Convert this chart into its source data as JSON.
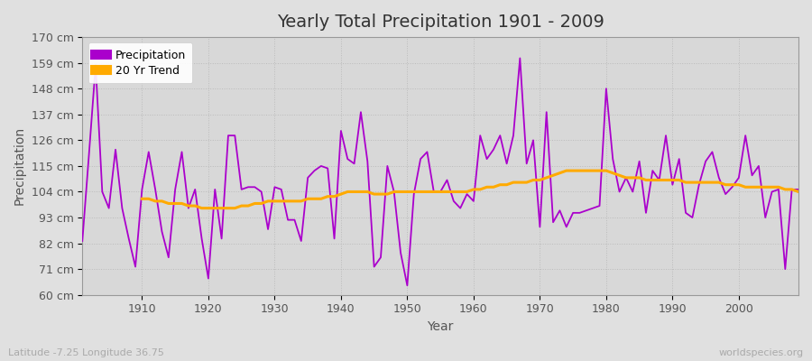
{
  "title": "Yearly Total Precipitation 1901 - 2009",
  "xlabel": "Year",
  "ylabel": "Precipitation",
  "lat_lon_label": "Latitude -7.25 Longitude 36.75",
  "watermark": "worldspecies.org",
  "bg_color": "#e0e0e0",
  "plot_bg_color": "#d8d8d8",
  "precip_color": "#aa00cc",
  "trend_color": "#ffaa00",
  "years": [
    1901,
    1902,
    1903,
    1904,
    1905,
    1906,
    1907,
    1908,
    1909,
    1910,
    1911,
    1912,
    1913,
    1914,
    1915,
    1916,
    1917,
    1918,
    1919,
    1920,
    1921,
    1922,
    1923,
    1924,
    1925,
    1926,
    1927,
    1928,
    1929,
    1930,
    1931,
    1932,
    1933,
    1934,
    1935,
    1936,
    1937,
    1938,
    1939,
    1940,
    1941,
    1942,
    1943,
    1944,
    1945,
    1946,
    1947,
    1948,
    1949,
    1950,
    1951,
    1952,
    1953,
    1954,
    1955,
    1956,
    1957,
    1958,
    1959,
    1960,
    1961,
    1962,
    1963,
    1964,
    1965,
    1966,
    1967,
    1968,
    1969,
    1970,
    1971,
    1972,
    1973,
    1974,
    1975,
    1976,
    1977,
    1978,
    1979,
    1980,
    1981,
    1982,
    1983,
    1984,
    1985,
    1986,
    1987,
    1988,
    1989,
    1990,
    1991,
    1992,
    1993,
    1994,
    1995,
    1996,
    1997,
    1998,
    1999,
    2000,
    2001,
    2002,
    2003,
    2004,
    2005,
    2006,
    2007,
    2008,
    2009
  ],
  "precip": [
    83,
    120,
    158,
    104,
    97,
    122,
    97,
    84,
    72,
    105,
    121,
    105,
    87,
    76,
    105,
    121,
    97,
    105,
    84,
    67,
    105,
    84,
    128,
    128,
    105,
    106,
    106,
    104,
    88,
    106,
    105,
    92,
    92,
    83,
    110,
    113,
    115,
    114,
    84,
    130,
    118,
    116,
    138,
    117,
    72,
    76,
    115,
    104,
    78,
    64,
    103,
    118,
    121,
    104,
    104,
    109,
    100,
    97,
    103,
    100,
    128,
    118,
    122,
    128,
    116,
    128,
    161,
    116,
    126,
    89,
    138,
    91,
    96,
    89,
    95,
    95,
    96,
    97,
    98,
    148,
    118,
    104,
    110,
    104,
    117,
    95,
    113,
    109,
    128,
    107,
    118,
    95,
    93,
    107,
    117,
    121,
    110,
    103,
    106,
    110,
    128,
    111,
    115,
    93,
    104,
    105,
    71,
    105,
    105
  ],
  "trend_years": [
    1910,
    1911,
    1912,
    1913,
    1914,
    1915,
    1916,
    1917,
    1918,
    1919,
    1920,
    1921,
    1922,
    1923,
    1924,
    1925,
    1926,
    1927,
    1928,
    1929,
    1930,
    1931,
    1932,
    1933,
    1934,
    1935,
    1936,
    1937,
    1938,
    1939,
    1940,
    1941,
    1942,
    1943,
    1944,
    1945,
    1946,
    1947,
    1948,
    1949,
    1950,
    1951,
    1952,
    1953,
    1954,
    1955,
    1956,
    1957,
    1958,
    1959,
    1960,
    1961,
    1962,
    1963,
    1964,
    1965,
    1966,
    1967,
    1968,
    1969,
    1970,
    1971,
    1972,
    1973,
    1974,
    1975,
    1976,
    1977,
    1978,
    1979,
    1980,
    1981,
    1982,
    1983,
    1984,
    1985,
    1986,
    1987,
    1988,
    1989,
    1990,
    1991,
    1992,
    1993,
    1994,
    1995,
    1996,
    1997,
    1998,
    1999,
    2000,
    2001,
    2002,
    2003,
    2004,
    2005,
    2006,
    2007,
    2008,
    2009
  ],
  "trend": [
    101,
    101,
    100,
    100,
    99,
    99,
    99,
    98,
    98,
    97,
    97,
    97,
    97,
    97,
    97,
    98,
    98,
    99,
    99,
    100,
    100,
    100,
    100,
    100,
    100,
    101,
    101,
    101,
    102,
    102,
    103,
    104,
    104,
    104,
    104,
    103,
    103,
    103,
    104,
    104,
    104,
    104,
    104,
    104,
    104,
    104,
    104,
    104,
    104,
    104,
    105,
    105,
    106,
    106,
    107,
    107,
    108,
    108,
    108,
    109,
    109,
    110,
    111,
    112,
    113,
    113,
    113,
    113,
    113,
    113,
    113,
    112,
    111,
    110,
    110,
    110,
    109,
    109,
    109,
    109,
    109,
    109,
    108,
    108,
    108,
    108,
    108,
    108,
    107,
    107,
    107,
    106,
    106,
    106,
    106,
    106,
    106,
    105,
    105,
    104
  ],
  "ylim": [
    60,
    170
  ],
  "yticks": [
    60,
    71,
    82,
    93,
    104,
    115,
    126,
    137,
    148,
    159,
    170
  ],
  "xlim": [
    1901,
    2009
  ],
  "xticks": [
    1910,
    1920,
    1930,
    1940,
    1950,
    1960,
    1970,
    1980,
    1990,
    2000
  ],
  "grid_color": "#bbbbbb",
  "grid_style": ":",
  "spine_color": "#999999",
  "title_fontsize": 14,
  "tick_fontsize": 9,
  "label_fontsize": 10,
  "footnote_fontsize": 8,
  "legend_square_size": 8
}
